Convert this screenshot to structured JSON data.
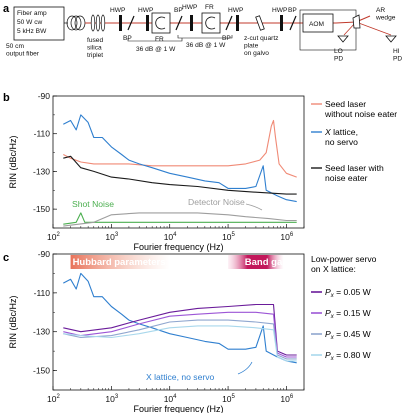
{
  "panel_labels": [
    "a",
    "b",
    "c"
  ],
  "setup": {
    "source_box": [
      "Fiber amp",
      "50 W cw",
      "5 kHz BW"
    ],
    "output_fiber": "50 cm\noutput fiber",
    "fused_triplet": "fused\nsilica\ntriplet",
    "hwp": "HWP",
    "bp": "BP",
    "fr": "FR",
    "isolation": "36 dB @ 1 W",
    "quartz": "z-cut quartz\nplate\non galvo",
    "aom": "AOM",
    "ar_wedge": "AR\nwedge",
    "lo_pd": "LO\nPD",
    "hi_pd": "HI\nPD",
    "colors": {
      "beam": "#c0392b",
      "optic": "#111111"
    }
  },
  "chart_data": [
    {
      "type": "line",
      "panel": "b",
      "ylabel": "RIN (dBc/Hz)",
      "xlabel": "Fourier frequency (Hz)",
      "xscale": "log",
      "xlim": [
        100,
        2000000
      ],
      "ylim": [
        -160,
        -90
      ],
      "yticks": [
        -90,
        -110,
        -130,
        -150
      ],
      "xtick_labels": [
        "10^2",
        "10^3",
        "10^4",
        "10^5",
        "10^6"
      ],
      "grid": false,
      "legend_position": "right",
      "series": [
        {
          "name": "Seed laser without noise eater",
          "color": "#f08a76",
          "points": [
            [
              150,
              -121
            ],
            [
              200,
              -123
            ],
            [
              300,
              -125
            ],
            [
              500,
              -126
            ],
            [
              1000,
              -126
            ],
            [
              2000,
              -126
            ],
            [
              5000,
              -127
            ],
            [
              10000,
              -127
            ],
            [
              30000,
              -127
            ],
            [
              100000,
              -127
            ],
            [
              200000,
              -126
            ],
            [
              350000,
              -124
            ],
            [
              450000,
              -120
            ],
            [
              550000,
              -106
            ],
            [
              600000,
              -103
            ],
            [
              650000,
              -112
            ],
            [
              750000,
              -126
            ],
            [
              1000000,
              -131
            ],
            [
              1500000,
              -133
            ]
          ]
        },
        {
          "name": "X lattice, no servo",
          "color": "#2f7fcf",
          "points": [
            [
              150,
              -105
            ],
            [
              200,
              -103
            ],
            [
              250,
              -108
            ],
            [
              300,
              -100
            ],
            [
              400,
              -104
            ],
            [
              500,
              -112
            ],
            [
              700,
              -112
            ],
            [
              1000,
              -117
            ],
            [
              1500,
              -121
            ],
            [
              2000,
              -124
            ],
            [
              3000,
              -126
            ],
            [
              5000,
              -128
            ],
            [
              10000,
              -131
            ],
            [
              20000,
              -133
            ],
            [
              40000,
              -135
            ],
            [
              70000,
              -136
            ],
            [
              100000,
              -139
            ],
            [
              200000,
              -139
            ],
            [
              300000,
              -138
            ],
            [
              400000,
              -127
            ],
            [
              450000,
              -140
            ],
            [
              700000,
              -143
            ],
            [
              1000000,
              -145
            ],
            [
              1500000,
              -146
            ]
          ]
        },
        {
          "name": "Seed laser with noise eater",
          "color": "#1a1a1a",
          "points": [
            [
              150,
              -123
            ],
            [
              200,
              -122
            ],
            [
              300,
              -128
            ],
            [
              500,
              -130
            ],
            [
              1000,
              -133
            ],
            [
              2000,
              -134
            ],
            [
              5000,
              -136
            ],
            [
              10000,
              -137
            ],
            [
              30000,
              -138
            ],
            [
              100000,
              -140
            ],
            [
              300000,
              -141
            ],
            [
              1000000,
              -142
            ],
            [
              1500000,
              -142
            ]
          ]
        },
        {
          "name": "Shot Noise",
          "color": "#4caf50",
          "points": [
            [
              150,
              -158
            ],
            [
              250,
              -157
            ],
            [
              300,
              -152
            ],
            [
              350,
              -157
            ],
            [
              1000,
              -157
            ],
            [
              10000,
              -157
            ],
            [
              100000,
              -157
            ],
            [
              1000000,
              -157
            ],
            [
              1500000,
              -157
            ]
          ]
        },
        {
          "name": "Detector Noise",
          "color": "#9e9e9e",
          "points": [
            [
              150,
              -159
            ],
            [
              500,
              -157
            ],
            [
              1000,
              -153
            ],
            [
              3000,
              -152
            ],
            [
              10000,
              -152
            ],
            [
              30000,
              -152
            ],
            [
              100000,
              -153
            ],
            [
              200000,
              -154
            ],
            [
              500000,
              -155
            ],
            [
              1000000,
              -156
            ],
            [
              1500000,
              -156
            ]
          ]
        }
      ],
      "annotations": [
        "Shot Noise",
        "Detector Noise"
      ]
    },
    {
      "type": "line",
      "panel": "c",
      "ylabel": "RIN (dBc/Hz)",
      "xlabel": "Fourier frequency (Hz)",
      "xscale": "log",
      "xlim": [
        100,
        2000000
      ],
      "ylim": [
        -160,
        -90
      ],
      "yticks": [
        -90,
        -110,
        -130,
        -150
      ],
      "xtick_labels": [
        "10^2",
        "10^3",
        "10^4",
        "10^5",
        "10^6"
      ],
      "grid": false,
      "regions": [
        {
          "label": "Hubbard parameters",
          "x": [
            200,
            10000
          ],
          "color": "#e8735a"
        },
        {
          "label": "Band gaps",
          "x": [
            100000,
            900000
          ],
          "color": "#c2185b"
        }
      ],
      "legend_title": "Low-power servo\non X lattice:",
      "legend_position": "right",
      "series": [
        {
          "name": "X lattice, no servo",
          "color": "#2f7fcf",
          "points": [
            [
              150,
              -105
            ],
            [
              200,
              -103
            ],
            [
              250,
              -108
            ],
            [
              300,
              -100
            ],
            [
              400,
              -104
            ],
            [
              500,
              -112
            ],
            [
              700,
              -112
            ],
            [
              1000,
              -117
            ],
            [
              1500,
              -121
            ],
            [
              2000,
              -124
            ],
            [
              3000,
              -126
            ],
            [
              5000,
              -128
            ],
            [
              10000,
              -131
            ],
            [
              20000,
              -133
            ],
            [
              40000,
              -135
            ],
            [
              70000,
              -136
            ],
            [
              100000,
              -139
            ],
            [
              200000,
              -139
            ],
            [
              300000,
              -138
            ],
            [
              400000,
              -127
            ],
            [
              450000,
              -140
            ],
            [
              700000,
              -143
            ],
            [
              1000000,
              -145
            ],
            [
              1500000,
              -146
            ]
          ]
        },
        {
          "name": "P_x = 0.05 W",
          "label_main": "P",
          "label_sub": "x",
          "label_rest": " = 0.05 W",
          "color": "#6a1b9a",
          "points": [
            [
              150,
              -128
            ],
            [
              300,
              -130
            ],
            [
              1000,
              -128
            ],
            [
              3000,
              -124
            ],
            [
              10000,
              -120
            ],
            [
              30000,
              -118
            ],
            [
              100000,
              -117
            ],
            [
              300000,
              -116
            ],
            [
              600000,
              -116
            ],
            [
              700000,
              -140
            ],
            [
              1000000,
              -142
            ],
            [
              1500000,
              -142
            ]
          ]
        },
        {
          "name": "P_x = 0.15 W",
          "label_main": "P",
          "label_sub": "x",
          "label_rest": " = 0.15 W",
          "color": "#9c56d6",
          "points": [
            [
              150,
              -130
            ],
            [
              300,
              -132
            ],
            [
              1000,
              -130
            ],
            [
              3000,
              -126
            ],
            [
              10000,
              -122
            ],
            [
              30000,
              -121
            ],
            [
              100000,
              -120
            ],
            [
              300000,
              -120
            ],
            [
              600000,
              -121
            ],
            [
              700000,
              -141
            ],
            [
              1000000,
              -143
            ],
            [
              1500000,
              -143
            ]
          ]
        },
        {
          "name": "P_x = 0.45 W",
          "label_main": "P",
          "label_sub": "x",
          "label_rest": " = 0.45 W",
          "color": "#8fa6cf",
          "points": [
            [
              150,
              -131
            ],
            [
              300,
              -133
            ],
            [
              1000,
              -132
            ],
            [
              3000,
              -129
            ],
            [
              10000,
              -125
            ],
            [
              30000,
              -124
            ],
            [
              100000,
              -124
            ],
            [
              300000,
              -125
            ],
            [
              600000,
              -126
            ],
            [
              700000,
              -142
            ],
            [
              1000000,
              -144
            ],
            [
              1500000,
              -144
            ]
          ]
        },
        {
          "name": "P_x = 0.80 W",
          "label_main": "P",
          "label_sub": "x",
          "label_rest": " = 0.80 W",
          "color": "#a9d8ec",
          "points": [
            [
              150,
              -131
            ],
            [
              300,
              -132
            ],
            [
              1000,
              -133
            ],
            [
              3000,
              -131
            ],
            [
              10000,
              -128
            ],
            [
              30000,
              -127
            ],
            [
              100000,
              -127
            ],
            [
              300000,
              -128
            ],
            [
              600000,
              -129
            ],
            [
              700000,
              -143
            ],
            [
              1000000,
              -145
            ],
            [
              1500000,
              -145
            ]
          ]
        }
      ],
      "annotations": [
        "X lattice, no servo"
      ]
    }
  ]
}
